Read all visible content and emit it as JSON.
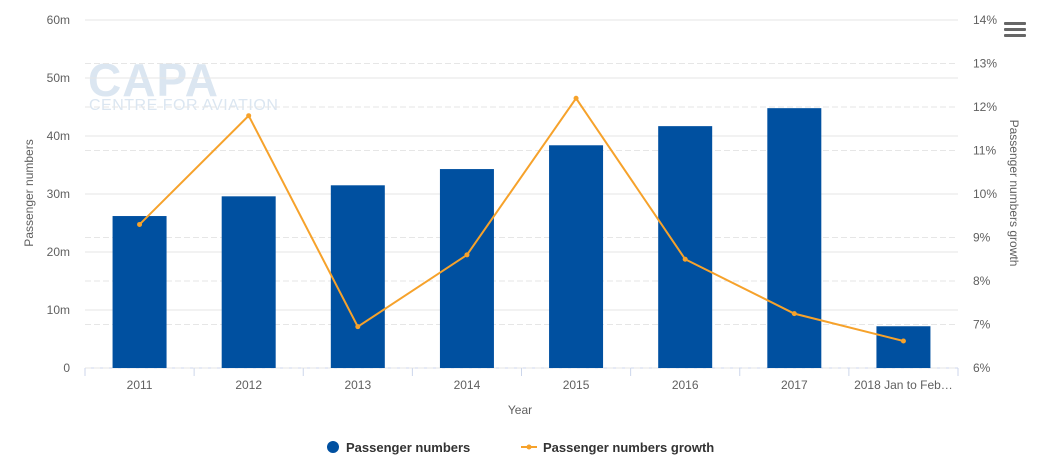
{
  "watermark": {
    "brand": "CAPA",
    "tagline": "CENTRE FOR AVIATION"
  },
  "chart_data": {
    "type": "bar",
    "categories": [
      "2011",
      "2012",
      "2013",
      "2014",
      "2015",
      "2016",
      "2017",
      "2018 Jan to Feb…"
    ],
    "series": [
      {
        "name": "Passenger numbers",
        "type": "bar",
        "axis": "left",
        "color": "#0050a0",
        "values": [
          26.2,
          29.6,
          31.5,
          34.3,
          38.4,
          41.7,
          44.8,
          7.2
        ]
      },
      {
        "name": "Passenger numbers growth",
        "type": "line",
        "axis": "right",
        "color": "#f6a22b",
        "values": [
          9.3,
          11.8,
          6.95,
          8.6,
          12.2,
          8.5,
          7.25,
          6.62
        ]
      }
    ],
    "xlabel": "Year",
    "ylabel": "Passenger numbers",
    "y2label": "Passenger numbers growth",
    "ylim": [
      0,
      60
    ],
    "y2lim": [
      6,
      14
    ],
    "yticks": [
      "0",
      "10m",
      "20m",
      "30m",
      "40m",
      "50m",
      "60m"
    ],
    "y2ticks": [
      "6%",
      "7%",
      "8%",
      "9%",
      "10%",
      "11%",
      "12%",
      "13%",
      "14%"
    ],
    "grid": true,
    "legend": "bottom-center"
  },
  "menu": {
    "icon": "hamburger-menu-icon"
  }
}
